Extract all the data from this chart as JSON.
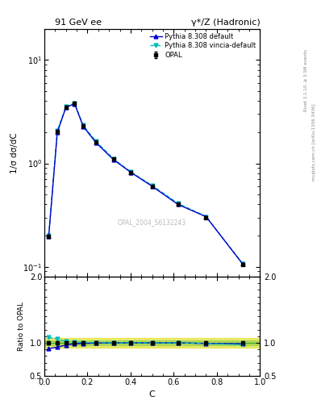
{
  "title_left": "91 GeV ee",
  "title_right": "γ*/Z (Hadronic)",
  "ylabel_main": "1/σ dσ/dC",
  "ylabel_ratio": "Ratio to OPAL",
  "xlabel": "C",
  "rivet_label": "Rivet 3.1.10, ≥ 3.5M events",
  "mcplots_label": "mcplots.cern.ch [arXiv:1306.3436]",
  "ref_label": "OPAL_2004_S6132243",
  "legend_entries": [
    "OPAL",
    "Pythia 8.308 default",
    "Pythia 8.308 vincia-default"
  ],
  "data_x": [
    0.02,
    0.06,
    0.1,
    0.14,
    0.18,
    0.24,
    0.32,
    0.4,
    0.5,
    0.62,
    0.75,
    0.92
  ],
  "data_y_opal": [
    0.195,
    2.05,
    3.5,
    3.8,
    2.3,
    1.6,
    1.1,
    0.82,
    0.6,
    0.4,
    0.3,
    0.105
  ],
  "data_y_pythia": [
    0.195,
    2.0,
    3.48,
    3.78,
    2.28,
    1.58,
    1.09,
    0.82,
    0.6,
    0.4,
    0.305,
    0.106
  ],
  "data_y_vincia": [
    0.2,
    2.08,
    3.52,
    3.83,
    2.33,
    1.63,
    1.11,
    0.83,
    0.61,
    0.41,
    0.305,
    0.107
  ],
  "ratio_pythia": [
    0.91,
    0.935,
    0.965,
    0.985,
    0.99,
    0.997,
    1.0,
    1.0,
    1.0,
    1.0,
    0.99,
    0.985
  ],
  "ratio_vincia": [
    1.08,
    1.06,
    1.02,
    1.01,
    1.005,
    1.002,
    1.0,
    1.0,
    1.0,
    1.0,
    0.99,
    0.97
  ],
  "color_opal": "#000000",
  "color_pythia": "#0000cc",
  "color_vincia": "#00bbbb",
  "ylim_main": [
    0.08,
    20.0
  ],
  "ylim_ratio": [
    0.5,
    2.0
  ],
  "xlim": [
    0.0,
    1.0
  ]
}
